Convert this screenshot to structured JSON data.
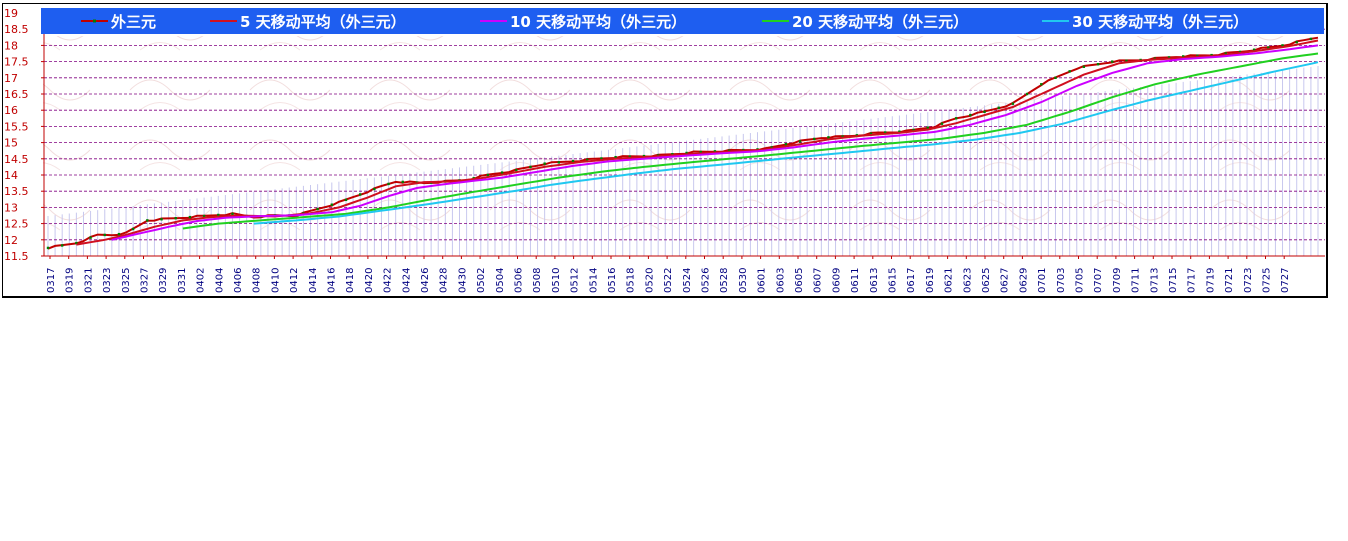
{
  "chart_data": {
    "type": "line",
    "title": "",
    "xlabel": "",
    "ylabel": "",
    "ylim": [
      11.5,
      19
    ],
    "yticks": [
      "11.5",
      "12",
      "12.5",
      "13",
      "13.5",
      "14",
      "14.5",
      "15",
      "15.5",
      "16",
      "16.5",
      "17",
      "17.5",
      "18",
      "18.5",
      "19"
    ],
    "x_tick_labels": [
      "0317",
      "0319",
      "0321",
      "0323",
      "0325",
      "0327",
      "0329",
      "0331",
      "0402",
      "0404",
      "0406",
      "0408",
      "0410",
      "0412",
      "0414",
      "0416",
      "0418",
      "0420",
      "0422",
      "0424",
      "0426",
      "0428",
      "0430",
      "0502",
      "0504",
      "0506",
      "0508",
      "0510",
      "0512",
      "0514",
      "0516",
      "0518",
      "0520",
      "0522",
      "0524",
      "0526",
      "0528",
      "0530",
      "0601",
      "0603",
      "0605",
      "0607",
      "0609",
      "0611",
      "0613",
      "0615",
      "0617",
      "0619",
      "0621",
      "0623",
      "0625",
      "0627",
      "0629",
      "0701",
      "0703",
      "0705",
      "0707",
      "0709",
      "0711",
      "0713",
      "0715",
      "0717",
      "0719",
      "0721",
      "0723",
      "0725",
      "0727"
    ],
    "n_days": 134,
    "grid": true,
    "legend_position": "top",
    "colors": {
      "legend_bar": "#1e5ef0",
      "grid": "#800080",
      "axis": "#c00000",
      "bars": "#c8c8ee"
    },
    "series": [
      {
        "name": "外三元",
        "color": "#c00000",
        "marker_color": "#008000",
        "start": 0,
        "keypoints": [
          [
            0,
            11.75
          ],
          [
            4,
            11.9
          ],
          [
            7,
            12.15
          ],
          [
            9,
            12.15
          ],
          [
            11,
            12.2
          ],
          [
            14,
            12.6
          ],
          [
            17,
            12.65
          ],
          [
            20,
            12.7
          ],
          [
            23,
            12.75
          ],
          [
            26,
            12.8
          ],
          [
            29,
            12.7
          ],
          [
            32,
            12.75
          ],
          [
            35,
            12.75
          ],
          [
            38,
            12.95
          ],
          [
            41,
            13.15
          ],
          [
            44,
            13.4
          ],
          [
            47,
            13.65
          ],
          [
            49,
            13.8
          ],
          [
            53,
            13.75
          ],
          [
            56,
            13.8
          ],
          [
            59,
            13.85
          ],
          [
            62,
            14.0
          ],
          [
            66,
            14.15
          ],
          [
            70,
            14.35
          ],
          [
            75,
            14.45
          ],
          [
            80,
            14.55
          ],
          [
            86,
            14.6
          ],
          [
            91,
            14.7
          ],
          [
            96,
            14.75
          ],
          [
            101,
            14.8
          ],
          [
            105,
            15.0
          ],
          [
            109,
            15.15
          ],
          [
            113,
            15.2
          ],
          [
            117,
            15.3
          ],
          [
            121,
            15.35
          ],
          [
            125,
            15.5
          ],
          [
            128,
            15.75
          ],
          [
            132,
            15.95
          ],
          [
            136,
            16.2
          ],
          [
            140,
            16.8
          ],
          [
            145,
            17.3
          ],
          [
            150,
            17.5
          ],
          [
            154,
            17.55
          ],
          [
            159,
            17.65
          ],
          [
            164,
            17.7
          ],
          [
            168,
            17.8
          ],
          [
            174,
            18.0
          ],
          [
            178,
            18.2
          ],
          [
            179,
            18.25
          ]
        ]
      },
      {
        "name": "5 天移动平均（外三元）",
        "color": "#d01020",
        "start": 4,
        "keypoints": [
          [
            4,
            11.85
          ],
          [
            8,
            12.0
          ],
          [
            11,
            12.15
          ],
          [
            15,
            12.4
          ],
          [
            19,
            12.6
          ],
          [
            23,
            12.7
          ],
          [
            27,
            12.75
          ],
          [
            32,
            12.72
          ],
          [
            37,
            12.82
          ],
          [
            41,
            13.0
          ],
          [
            45,
            13.3
          ],
          [
            49,
            13.65
          ],
          [
            53,
            13.78
          ],
          [
            57,
            13.8
          ],
          [
            61,
            13.9
          ],
          [
            65,
            14.05
          ],
          [
            70,
            14.25
          ],
          [
            75,
            14.4
          ],
          [
            80,
            14.5
          ],
          [
            86,
            14.58
          ],
          [
            91,
            14.65
          ],
          [
            96,
            14.72
          ],
          [
            101,
            14.78
          ],
          [
            106,
            14.95
          ],
          [
            110,
            15.1
          ],
          [
            115,
            15.22
          ],
          [
            120,
            15.3
          ],
          [
            124,
            15.4
          ],
          [
            128,
            15.6
          ],
          [
            132,
            15.85
          ],
          [
            136,
            16.1
          ],
          [
            141,
            16.6
          ],
          [
            146,
            17.1
          ],
          [
            151,
            17.45
          ],
          [
            155,
            17.55
          ],
          [
            160,
            17.62
          ],
          [
            165,
            17.68
          ],
          [
            170,
            17.82
          ],
          [
            175,
            17.98
          ],
          [
            179,
            18.15
          ]
        ]
      },
      {
        "name": "10 天移动平均（外三元）",
        "color": "#cc00ff",
        "start": 9,
        "keypoints": [
          [
            9,
            12.0
          ],
          [
            13,
            12.2
          ],
          [
            17,
            12.4
          ],
          [
            21,
            12.58
          ],
          [
            25,
            12.68
          ],
          [
            30,
            12.73
          ],
          [
            35,
            12.76
          ],
          [
            40,
            12.85
          ],
          [
            44,
            13.05
          ],
          [
            48,
            13.35
          ],
          [
            52,
            13.6
          ],
          [
            56,
            13.72
          ],
          [
            60,
            13.82
          ],
          [
            64,
            13.92
          ],
          [
            69,
            14.1
          ],
          [
            74,
            14.28
          ],
          [
            79,
            14.42
          ],
          [
            85,
            14.52
          ],
          [
            90,
            14.6
          ],
          [
            95,
            14.67
          ],
          [
            100,
            14.73
          ],
          [
            105,
            14.85
          ],
          [
            110,
            15.0
          ],
          [
            115,
            15.12
          ],
          [
            120,
            15.22
          ],
          [
            125,
            15.33
          ],
          [
            130,
            15.55
          ],
          [
            135,
            15.85
          ],
          [
            140,
            16.25
          ],
          [
            145,
            16.75
          ],
          [
            150,
            17.15
          ],
          [
            155,
            17.45
          ],
          [
            160,
            17.58
          ],
          [
            165,
            17.65
          ],
          [
            170,
            17.75
          ],
          [
            175,
            17.88
          ],
          [
            179,
            18.0
          ]
        ]
      },
      {
        "name": "20 天移动平均（外三元）",
        "color": "#20d020",
        "start": 19,
        "keypoints": [
          [
            19,
            12.35
          ],
          [
            24,
            12.5
          ],
          [
            30,
            12.6
          ],
          [
            36,
            12.7
          ],
          [
            42,
            12.8
          ],
          [
            48,
            13.0
          ],
          [
            54,
            13.25
          ],
          [
            60,
            13.48
          ],
          [
            66,
            13.7
          ],
          [
            72,
            13.92
          ],
          [
            78,
            14.1
          ],
          [
            84,
            14.25
          ],
          [
            90,
            14.38
          ],
          [
            96,
            14.5
          ],
          [
            102,
            14.62
          ],
          [
            108,
            14.75
          ],
          [
            114,
            14.88
          ],
          [
            120,
            15.0
          ],
          [
            126,
            15.12
          ],
          [
            132,
            15.3
          ],
          [
            138,
            15.55
          ],
          [
            144,
            15.95
          ],
          [
            150,
            16.4
          ],
          [
            156,
            16.8
          ],
          [
            162,
            17.1
          ],
          [
            168,
            17.35
          ],
          [
            174,
            17.6
          ],
          [
            179,
            17.75
          ]
        ]
      },
      {
        "name": "30 天移动平均（外三元）",
        "color": "#20c8f0",
        "start": 29,
        "keypoints": [
          [
            29,
            12.5
          ],
          [
            35,
            12.6
          ],
          [
            41,
            12.72
          ],
          [
            47,
            12.9
          ],
          [
            53,
            13.08
          ],
          [
            59,
            13.28
          ],
          [
            65,
            13.48
          ],
          [
            71,
            13.7
          ],
          [
            77,
            13.88
          ],
          [
            83,
            14.05
          ],
          [
            89,
            14.2
          ],
          [
            95,
            14.32
          ],
          [
            101,
            14.45
          ],
          [
            107,
            14.58
          ],
          [
            113,
            14.7
          ],
          [
            119,
            14.83
          ],
          [
            125,
            14.95
          ],
          [
            131,
            15.1
          ],
          [
            137,
            15.3
          ],
          [
            143,
            15.58
          ],
          [
            149,
            15.95
          ],
          [
            155,
            16.3
          ],
          [
            161,
            16.6
          ],
          [
            167,
            16.9
          ],
          [
            173,
            17.2
          ],
          [
            179,
            17.48
          ]
        ]
      }
    ]
  }
}
